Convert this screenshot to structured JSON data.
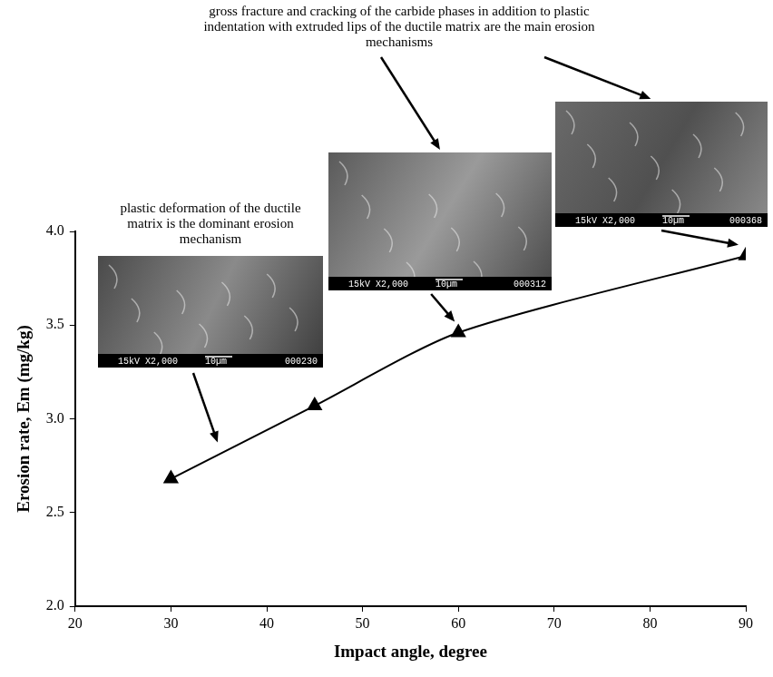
{
  "chart_data": {
    "type": "line",
    "x": [
      30,
      45,
      60,
      90
    ],
    "values": [
      2.68,
      3.07,
      3.46,
      3.87
    ],
    "color": "#000000",
    "marker": "triangle",
    "line_style": "solid",
    "x_label": "Impact angle, degree",
    "y_label": "Erosion rate, Em (mg/kg)",
    "xlim": [
      20,
      90
    ],
    "xticks": [
      20,
      30,
      40,
      50,
      60,
      70,
      80,
      90
    ],
    "ylim": [
      2,
      4
    ],
    "yticks": [
      {
        "value": 2,
        "label": "2.0"
      },
      2.5,
      {
        "value": 3,
        "label": "3.0"
      },
      3.5,
      {
        "value": 4,
        "label": "4.0"
      }
    ],
    "grid": false,
    "annotations": [
      "plastic deformation of the ductile matrix is the dominant erosion mechanism",
      "gross fracture and cracking of the carbide phases in addition to plastic indentation with extruded lips of the ductile matrix are the main erosion mechanisms"
    ],
    "images": [
      {
        "voltage": "15kV",
        "magnification": "X2,000",
        "scale_bar": "10µm",
        "number": "000230"
      },
      {
        "voltage": "15kV",
        "magnification": "X2,000",
        "scale_bar": "10µm",
        "number": "000312"
      },
      {
        "voltage": "15kV",
        "magnification": "X2,000",
        "scale_bar": "10µm",
        "number": "000368"
      }
    ]
  }
}
